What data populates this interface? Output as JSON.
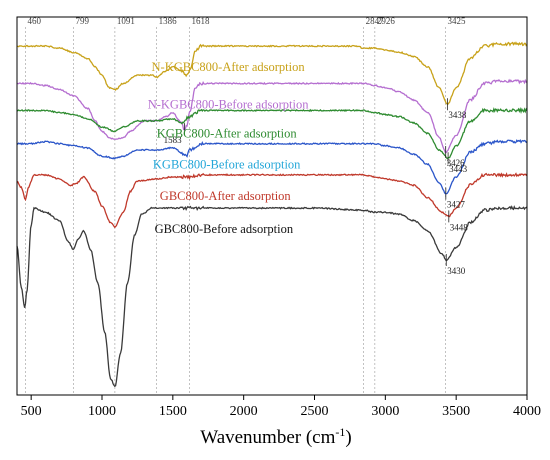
{
  "chart_data": {
    "type": "line",
    "title": "",
    "xlabel": "Wavenumber (cm",
    "xlabel_sup": "-1",
    "xlabel_tail": ")",
    "ylabel": "",
    "xlim": [
      400,
      4000
    ],
    "xticks": [
      500,
      1000,
      1500,
      2000,
      2500,
      3000,
      3500,
      4000
    ],
    "grid": false,
    "reference_lines": [
      {
        "x": 460,
        "label": "460"
      },
      {
        "x": 799,
        "label": "799"
      },
      {
        "x": 1091,
        "label": "1091"
      },
      {
        "x": 1386,
        "label": "1386"
      },
      {
        "x": 1618,
        "label": "1618"
      },
      {
        "x": 2847,
        "label": "2847"
      },
      {
        "x": 2926,
        "label": "2926"
      },
      {
        "x": 3425,
        "label": "3425"
      }
    ],
    "series": [
      {
        "name": "N-KGBC800-After adsorption",
        "color": "#c8a21a",
        "label_color": "#c8a21a",
        "offset": 100,
        "points": [
          [
            400,
            -2
          ],
          [
            460,
            -2
          ],
          [
            600,
            -2
          ],
          [
            700,
            -3
          ],
          [
            800,
            -5
          ],
          [
            900,
            -8
          ],
          [
            950,
            -12
          ],
          [
            1000,
            -16
          ],
          [
            1050,
            -22
          ],
          [
            1091,
            -23
          ],
          [
            1150,
            -20
          ],
          [
            1250,
            -16
          ],
          [
            1350,
            -16
          ],
          [
            1386,
            -17
          ],
          [
            1450,
            -14
          ],
          [
            1500,
            -12
          ],
          [
            1560,
            -14
          ],
          [
            1600,
            -16
          ],
          [
            1618,
            -14
          ],
          [
            1660,
            -4
          ],
          [
            1700,
            -2
          ],
          [
            1800,
            -2
          ],
          [
            2000,
            -2
          ],
          [
            2200,
            -2
          ],
          [
            2400,
            -2
          ],
          [
            2600,
            -2
          ],
          [
            2800,
            -2
          ],
          [
            2847,
            -3
          ],
          [
            2926,
            -3
          ],
          [
            3000,
            -4
          ],
          [
            3100,
            -5
          ],
          [
            3200,
            -7
          ],
          [
            3300,
            -12
          ],
          [
            3380,
            -22
          ],
          [
            3438,
            -30
          ],
          [
            3500,
            -22
          ],
          [
            3600,
            -8
          ],
          [
            3700,
            -2
          ],
          [
            3800,
            -1
          ],
          [
            4000,
            -1
          ]
        ],
        "peaks": [
          {
            "x": 3438,
            "label": "3438"
          }
        ]
      },
      {
        "name": "N-KGBC800-Before adsorption",
        "color": "#b56fd0",
        "label_color": "#b56fd0",
        "offset": 82,
        "points": [
          [
            400,
            -2
          ],
          [
            500,
            -2
          ],
          [
            600,
            -3
          ],
          [
            700,
            -5
          ],
          [
            800,
            -8
          ],
          [
            900,
            -14
          ],
          [
            950,
            -20
          ],
          [
            1000,
            -25
          ],
          [
            1050,
            -28
          ],
          [
            1091,
            -29
          ],
          [
            1150,
            -28
          ],
          [
            1200,
            -25
          ],
          [
            1300,
            -20
          ],
          [
            1386,
            -20
          ],
          [
            1450,
            -18
          ],
          [
            1500,
            -16
          ],
          [
            1550,
            -20
          ],
          [
            1583,
            -24
          ],
          [
            1600,
            -22
          ],
          [
            1620,
            -15
          ],
          [
            1660,
            -4
          ],
          [
            1700,
            -2
          ],
          [
            1800,
            -2
          ],
          [
            2000,
            -2
          ],
          [
            2200,
            -2
          ],
          [
            2400,
            -2
          ],
          [
            2600,
            -2
          ],
          [
            2847,
            -2
          ],
          [
            2926,
            -3
          ],
          [
            3000,
            -4
          ],
          [
            3100,
            -6
          ],
          [
            3200,
            -10
          ],
          [
            3300,
            -16
          ],
          [
            3380,
            -28
          ],
          [
            3426,
            -35
          ],
          [
            3500,
            -27
          ],
          [
            3600,
            -10
          ],
          [
            3700,
            -2
          ],
          [
            3800,
            -1
          ],
          [
            4000,
            -1
          ]
        ],
        "peaks": [
          {
            "x": 1583,
            "label": "1583"
          },
          {
            "x": 3426,
            "label": "3426"
          }
        ]
      },
      {
        "name": "KGBC800-After adsorption",
        "color": "#2e8b30",
        "label_color": "#2e8b30",
        "offset": 68,
        "points": [
          [
            400,
            -1
          ],
          [
            500,
            -1
          ],
          [
            600,
            -1
          ],
          [
            700,
            -2
          ],
          [
            800,
            -3
          ],
          [
            900,
            -5
          ],
          [
            1000,
            -9
          ],
          [
            1091,
            -11
          ],
          [
            1150,
            -9
          ],
          [
            1250,
            -6
          ],
          [
            1386,
            -6
          ],
          [
            1500,
            -5
          ],
          [
            1560,
            -7
          ],
          [
            1618,
            -4
          ],
          [
            1700,
            -1
          ],
          [
            2000,
            -1
          ],
          [
            2500,
            -1
          ],
          [
            2847,
            -1
          ],
          [
            2926,
            -2
          ],
          [
            3000,
            -3
          ],
          [
            3100,
            -4
          ],
          [
            3200,
            -7
          ],
          [
            3300,
            -12
          ],
          [
            3380,
            -20
          ],
          [
            3443,
            -24
          ],
          [
            3500,
            -18
          ],
          [
            3600,
            -6
          ],
          [
            3700,
            -1
          ],
          [
            3800,
            -1
          ],
          [
            4000,
            -1
          ]
        ],
        "peaks": [
          {
            "x": 3443,
            "label": "3443"
          }
        ]
      },
      {
        "name": "KGBC800-Before adsorption",
        "color": "#2a55c9",
        "label_color": "#22a6d8",
        "offset": 53,
        "points": [
          [
            400,
            -2
          ],
          [
            500,
            -2
          ],
          [
            600,
            -1
          ],
          [
            700,
            -2
          ],
          [
            800,
            -3
          ],
          [
            900,
            -4
          ],
          [
            1000,
            -8
          ],
          [
            1091,
            -9
          ],
          [
            1150,
            -8
          ],
          [
            1250,
            -5
          ],
          [
            1386,
            -5
          ],
          [
            1500,
            -4
          ],
          [
            1600,
            -8
          ],
          [
            1618,
            -5
          ],
          [
            1700,
            -2
          ],
          [
            2000,
            -2
          ],
          [
            2500,
            -2
          ],
          [
            2847,
            -2
          ],
          [
            2926,
            -2
          ],
          [
            3000,
            -3
          ],
          [
            3100,
            -4
          ],
          [
            3200,
            -7
          ],
          [
            3300,
            -12
          ],
          [
            3380,
            -21
          ],
          [
            3427,
            -26
          ],
          [
            3500,
            -18
          ],
          [
            3600,
            -6
          ],
          [
            3700,
            -2
          ],
          [
            3800,
            -1
          ],
          [
            4000,
            -1
          ]
        ],
        "peaks": [
          {
            "x": 3427,
            "label": "3427"
          }
        ]
      },
      {
        "name": "GBC800-After adsorption",
        "color": "#c0392b",
        "label_color": "#c0392b",
        "offset": 38,
        "points": [
          [
            400,
            -5
          ],
          [
            430,
            -8
          ],
          [
            460,
            -14
          ],
          [
            480,
            -8
          ],
          [
            520,
            -2
          ],
          [
            600,
            -2
          ],
          [
            700,
            -4
          ],
          [
            780,
            -7
          ],
          [
            820,
            -6
          ],
          [
            870,
            -3
          ],
          [
            950,
            -10
          ],
          [
            1000,
            -17
          ],
          [
            1060,
            -25
          ],
          [
            1091,
            -27
          ],
          [
            1150,
            -20
          ],
          [
            1200,
            -10
          ],
          [
            1250,
            -5
          ],
          [
            1386,
            -4
          ],
          [
            1500,
            -3
          ],
          [
            1618,
            -3
          ],
          [
            1700,
            -2
          ],
          [
            2000,
            -2
          ],
          [
            2500,
            -2
          ],
          [
            2847,
            -2
          ],
          [
            2926,
            -3
          ],
          [
            3000,
            -4
          ],
          [
            3100,
            -5
          ],
          [
            3200,
            -7
          ],
          [
            3300,
            -13
          ],
          [
            3400,
            -20
          ],
          [
            3448,
            -22
          ],
          [
            3500,
            -18
          ],
          [
            3600,
            -7
          ],
          [
            3700,
            -2
          ],
          [
            3800,
            -2
          ],
          [
            4000,
            -2
          ]
        ],
        "peaks": [
          {
            "x": 3448,
            "label": "3448"
          }
        ]
      },
      {
        "name": "GBC800-Before adsorption",
        "color": "#3a3a3a",
        "label_color": "#111111",
        "offset": 22,
        "points": [
          [
            400,
            -20
          ],
          [
            430,
            -40
          ],
          [
            455,
            -50
          ],
          [
            470,
            -42
          ],
          [
            500,
            -10
          ],
          [
            520,
            -2
          ],
          [
            600,
            -4
          ],
          [
            700,
            -8
          ],
          [
            760,
            -18
          ],
          [
            799,
            -22
          ],
          [
            830,
            -17
          ],
          [
            870,
            -13
          ],
          [
            920,
            -22
          ],
          [
            970,
            -38
          ],
          [
            1020,
            -62
          ],
          [
            1060,
            -84
          ],
          [
            1091,
            -88
          ],
          [
            1130,
            -72
          ],
          [
            1180,
            -38
          ],
          [
            1230,
            -15
          ],
          [
            1280,
            -5
          ],
          [
            1350,
            -2
          ],
          [
            1450,
            -2
          ],
          [
            1618,
            -2
          ],
          [
            1700,
            -2
          ],
          [
            2000,
            -2
          ],
          [
            2500,
            -2
          ],
          [
            2847,
            -3
          ],
          [
            2926,
            -4
          ],
          [
            3000,
            -4
          ],
          [
            3100,
            -5
          ],
          [
            3200,
            -8
          ],
          [
            3300,
            -13
          ],
          [
            3400,
            -24
          ],
          [
            3430,
            -27
          ],
          [
            3500,
            -21
          ],
          [
            3600,
            -9
          ],
          [
            3700,
            -3
          ],
          [
            3800,
            -2
          ],
          [
            4000,
            -2
          ]
        ],
        "peaks": [
          {
            "x": 3430,
            "label": "3430"
          }
        ]
      }
    ]
  }
}
